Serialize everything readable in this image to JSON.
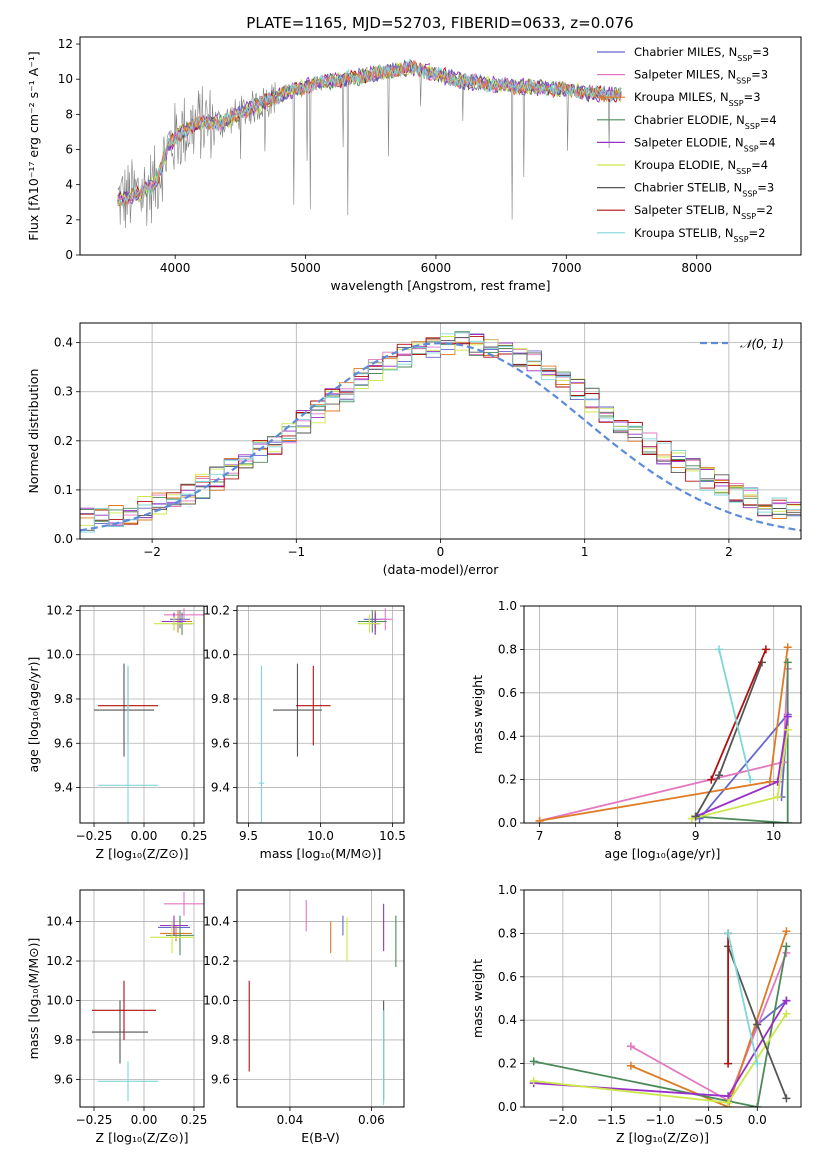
{
  "figure": {
    "title": "PLATE=1165, MJD=52703, FIBERID=0633, z=0.076"
  },
  "models": [
    {
      "name": "Chabrier MILES",
      "n": "3",
      "color": "#6666cc"
    },
    {
      "name": "Salpeter MILES",
      "n": "3",
      "color": "#e377c2"
    },
    {
      "name": "Kroupa MILES",
      "n": "3",
      "color": "#e07b25"
    },
    {
      "name": "Chabrier ELODIE",
      "n": "4",
      "color": "#4c8a5a"
    },
    {
      "name": "Salpeter ELODIE",
      "n": "4",
      "color": "#9b30c8"
    },
    {
      "name": "Kroupa ELODIE",
      "n": "4",
      "color": "#cde84a"
    },
    {
      "name": "Chabrier STELIB",
      "n": "3",
      "color": "#555555"
    },
    {
      "name": "Salpeter STELIB",
      "n": "2",
      "color": "#b01010"
    },
    {
      "name": "Kroupa STELIB",
      "n": "2",
      "color": "#7fd6d8"
    }
  ],
  "chart_data": [
    {
      "id": "spectrum",
      "type": "line",
      "xlabel": "wavelength [Angstrom, rest frame]",
      "ylabel": "Flux [fλ10⁻¹⁷ erg cm⁻² s⁻¹ A⁻¹]",
      "xlim": [
        3270,
        8800
      ],
      "ylim": [
        0,
        12.4
      ],
      "xticks": [
        4000,
        5000,
        6000,
        7000,
        8000
      ],
      "yticks": [
        0,
        2,
        4,
        6,
        8,
        10,
        12
      ],
      "grid": false,
      "legend": "top-right",
      "data_color": "#808080",
      "continuum": {
        "x": [
          3550,
          3650,
          3750,
          3850,
          3950,
          4050,
          4150,
          4250,
          4350,
          4450,
          4600,
          4800,
          5000,
          5200,
          5400,
          5600,
          5800,
          6000,
          6200,
          6400,
          6600,
          6800,
          7000,
          7200,
          7400
        ],
        "y": [
          3.1,
          3.3,
          3.6,
          4.1,
          6.2,
          7.0,
          7.4,
          7.6,
          7.5,
          7.9,
          8.4,
          9.1,
          9.6,
          9.9,
          10.1,
          10.4,
          10.7,
          10.3,
          9.9,
          9.7,
          9.6,
          9.5,
          9.4,
          9.2,
          9.1
        ]
      }
    },
    {
      "id": "residuals",
      "type": "line",
      "xlabel": "(data-model)/error",
      "ylabel": "Normed distribution",
      "xlim": [
        -2.5,
        2.5
      ],
      "ylim": [
        0,
        0.44
      ],
      "xticks": [
        -2,
        -1,
        0,
        1,
        2
      ],
      "yticks": [
        0.0,
        0.1,
        0.2,
        0.3,
        0.4
      ],
      "grid": true,
      "legend": "top-right",
      "reference_label": "𝒩(0, 1)",
      "reference_color": "#5b8bd9"
    },
    {
      "id": "age-Z",
      "type": "scatter",
      "xlabel": "Z [log₁₀(Z/Z⊙)]",
      "ylabel": "age  [log₁₀(age/yr)]",
      "xlim": [
        -0.32,
        0.3
      ],
      "ylim": [
        9.24,
        10.22
      ],
      "xticks": [
        -0.25,
        0.0,
        0.25
      ],
      "yticks": [
        9.4,
        9.6,
        9.8,
        10.0,
        10.2
      ],
      "grid": true,
      "points": [
        {
          "m": 0,
          "x": 0.18,
          "y": 10.16,
          "xe": 0.05,
          "ye": 0.04
        },
        {
          "m": 1,
          "x": 0.2,
          "y": 10.18,
          "xe": 0.1,
          "ye": 0.03
        },
        {
          "m": 2,
          "x": 0.17,
          "y": 10.15,
          "xe": 0.07,
          "ye": 0.05
        },
        {
          "m": 3,
          "x": 0.19,
          "y": 10.14,
          "xe": 0.05,
          "ye": 0.05
        },
        {
          "m": 4,
          "x": 0.15,
          "y": 10.15,
          "xe": 0.06,
          "ye": 0.04
        },
        {
          "m": 5,
          "x": 0.15,
          "y": 10.14,
          "xe": 0.1,
          "ye": 0.03
        },
        {
          "m": 6,
          "x": -0.1,
          "y": 9.75,
          "xe": 0.15,
          "ye": 0.21
        },
        {
          "m": 7,
          "x": -0.08,
          "y": 9.77,
          "xe": 0.15,
          "ye": 0.17
        },
        {
          "m": 8,
          "x": -0.08,
          "y": 9.41,
          "xe": 0.15,
          "ye": 0.54
        }
      ]
    },
    {
      "id": "age-mass",
      "type": "scatter",
      "xlabel": "mass [log₁₀(M/M⊙)]",
      "ylabel": "",
      "xlim": [
        9.42,
        10.58
      ],
      "ylim": [
        9.24,
        10.22
      ],
      "xticks": [
        9.5,
        10.0,
        10.5
      ],
      "yticks": [
        9.4,
        9.6,
        9.8,
        10.0,
        10.2
      ],
      "grid": true,
      "points": [
        {
          "m": 0,
          "x": 10.38,
          "y": 10.16,
          "xe": 0.08,
          "ye": 0.04
        },
        {
          "m": 1,
          "x": 10.45,
          "y": 10.16,
          "xe": 0.05,
          "ye": 0.05
        },
        {
          "m": 2,
          "x": 10.38,
          "y": 10.15,
          "xe": 0.05,
          "ye": 0.05
        },
        {
          "m": 3,
          "x": 10.36,
          "y": 10.15,
          "xe": 0.1,
          "ye": 0.05
        },
        {
          "m": 4,
          "x": 10.38,
          "y": 10.14,
          "xe": 0.03,
          "ye": 0.05
        },
        {
          "m": 5,
          "x": 10.34,
          "y": 10.14,
          "xe": 0.08,
          "ye": 0.04
        },
        {
          "m": 6,
          "x": 9.84,
          "y": 9.75,
          "xe": 0.17,
          "ye": 0.21
        },
        {
          "m": 7,
          "x": 9.95,
          "y": 9.77,
          "xe": 0.12,
          "ye": 0.18
        },
        {
          "m": 8,
          "x": 9.59,
          "y": 9.42,
          "xe": 0.02,
          "ye": 0.53
        }
      ]
    },
    {
      "id": "weight-age",
      "type": "line",
      "xlabel": "age  [log₁₀(age/yr)]",
      "ylabel": "mass weight",
      "xlim": [
        6.8,
        10.35
      ],
      "ylim": [
        0,
        1.0
      ],
      "xticks": [
        7,
        8,
        9,
        10
      ],
      "yticks": [
        0.0,
        0.2,
        0.4,
        0.6,
        0.8,
        1.0
      ],
      "grid": true,
      "series": [
        {
          "m": 0,
          "x": [
            9.05,
            10.18,
            10.1
          ],
          "y": [
            0.02,
            0.5,
            0.12
          ]
        },
        {
          "m": 1,
          "x": [
            7.0,
            10.12,
            10.18
          ],
          "y": [
            0.01,
            0.28,
            0.71
          ]
        },
        {
          "m": 2,
          "x": [
            7.0,
            9.95,
            10.18
          ],
          "y": [
            0.01,
            0.19,
            0.81
          ]
        },
        {
          "m": 3,
          "x": [
            9.0,
            10.18,
            10.18
          ],
          "y": [
            0.03,
            0.0,
            0.74
          ]
        },
        {
          "m": 4,
          "x": [
            9.0,
            10.05,
            10.18
          ],
          "y": [
            0.03,
            0.19,
            0.49
          ]
        },
        {
          "m": 5,
          "x": [
            8.95,
            10.05,
            10.18
          ],
          "y": [
            0.02,
            0.12,
            0.43
          ]
        },
        {
          "m": 6,
          "x": [
            9.0,
            9.3,
            9.85
          ],
          "y": [
            0.03,
            0.22,
            0.74
          ]
        },
        {
          "m": 7,
          "x": [
            9.2,
            9.9
          ],
          "y": [
            0.2,
            0.8
          ]
        },
        {
          "m": 8,
          "x": [
            9.3,
            9.7
          ],
          "y": [
            0.8,
            0.2
          ]
        }
      ]
    },
    {
      "id": "mass-Z",
      "type": "scatter",
      "xlabel": "Z [log₁₀(Z/Z⊙)]",
      "ylabel": "mass [log₁₀(M/M⊙)]",
      "xlim": [
        -0.32,
        0.3
      ],
      "ylim": [
        9.46,
        10.56
      ],
      "xticks": [
        -0.25,
        0.0,
        0.25
      ],
      "yticks": [
        9.6,
        9.8,
        10.0,
        10.2,
        10.4
      ],
      "grid": true,
      "points": [
        {
          "m": 0,
          "x": 0.15,
          "y": 10.37,
          "xe": 0.08,
          "ye": 0.04
        },
        {
          "m": 1,
          "x": 0.2,
          "y": 10.49,
          "xe": 0.1,
          "ye": 0.06
        },
        {
          "m": 2,
          "x": 0.16,
          "y": 10.34,
          "xe": 0.08,
          "ye": 0.04
        },
        {
          "m": 3,
          "x": 0.18,
          "y": 10.33,
          "xe": 0.07,
          "ye": 0.1
        },
        {
          "m": 4,
          "x": 0.15,
          "y": 10.38,
          "xe": 0.07,
          "ye": 0.05
        },
        {
          "m": 5,
          "x": 0.14,
          "y": 10.32,
          "xe": 0.11,
          "ye": 0.08
        },
        {
          "m": 6,
          "x": -0.12,
          "y": 9.84,
          "xe": 0.14,
          "ye": 0.16
        },
        {
          "m": 7,
          "x": -0.1,
          "y": 9.95,
          "xe": 0.16,
          "ye": 0.15
        },
        {
          "m": 8,
          "x": -0.08,
          "y": 9.59,
          "xe": 0.15,
          "ye": 0.1
        }
      ]
    },
    {
      "id": "mass-EBV",
      "type": "scatter",
      "xlabel": "E(B-V)",
      "ylabel": "",
      "xlim": [
        0.027,
        0.068
      ],
      "ylim": [
        9.46,
        10.56
      ],
      "xticks": [
        0.04,
        0.06
      ],
      "yticks": [
        9.6,
        9.8,
        10.0,
        10.2,
        10.4
      ],
      "grid": true,
      "points": [
        {
          "m": 0,
          "x": 0.053,
          "y": 10.38,
          "xe": 0,
          "ye": 0.05
        },
        {
          "m": 1,
          "x": 0.044,
          "y": 10.43,
          "xe": 0,
          "ye": 0.08
        },
        {
          "m": 2,
          "x": 0.05,
          "y": 10.32,
          "xe": 0,
          "ye": 0.08
        },
        {
          "m": 3,
          "x": 0.066,
          "y": 10.3,
          "xe": 0,
          "ye": 0.13
        },
        {
          "m": 4,
          "x": 0.063,
          "y": 10.37,
          "xe": 0,
          "ye": 0.12
        },
        {
          "m": 5,
          "x": 0.054,
          "y": 10.31,
          "xe": 0,
          "ye": 0.11
        },
        {
          "m": 6,
          "x": 0.063,
          "y": 9.75,
          "xe": 0,
          "ye": 0.25
        },
        {
          "m": 7,
          "x": 0.03,
          "y": 9.87,
          "xe": 0,
          "ye": 0.23
        },
        {
          "m": 8,
          "x": 0.063,
          "y": 9.71,
          "xe": 0,
          "ye": 0.24
        }
      ]
    },
    {
      "id": "weight-Z",
      "type": "line",
      "xlabel": "Z [log₁₀(Z/Z⊙)]",
      "ylabel": "mass weight",
      "xlim": [
        -2.4,
        0.45
      ],
      "ylim": [
        0,
        1.0
      ],
      "xticks": [
        -2.0,
        -1.5,
        -1.0,
        -0.5,
        0.0
      ],
      "yticks": [
        0.0,
        0.2,
        0.4,
        0.6,
        0.8,
        1.0
      ],
      "grid": true,
      "series": [
        {
          "m": 0,
          "x": [
            -0.3,
            0.0,
            0.3
          ],
          "y": [
            0.02,
            0.38,
            0.49
          ]
        },
        {
          "m": 1,
          "x": [
            -1.3,
            -0.3,
            0.3
          ],
          "y": [
            0.28,
            0.03,
            0.71
          ]
        },
        {
          "m": 2,
          "x": [
            -1.3,
            -0.3,
            0.3
          ],
          "y": [
            0.19,
            0.0,
            0.81
          ]
        },
        {
          "m": 3,
          "x": [
            -2.3,
            0.0,
            0.3
          ],
          "y": [
            0.21,
            0.0,
            0.74
          ]
        },
        {
          "m": 4,
          "x": [
            -2.3,
            -0.3,
            0.3
          ],
          "y": [
            0.11,
            0.05,
            0.49
          ]
        },
        {
          "m": 5,
          "x": [
            -2.3,
            -0.3,
            0.3
          ],
          "y": [
            0.12,
            0.02,
            0.43
          ]
        },
        {
          "m": 6,
          "x": [
            -0.3,
            0.0,
            0.3
          ],
          "y": [
            0.74,
            0.38,
            0.04
          ]
        },
        {
          "m": 7,
          "x": [
            -0.3,
            -0.3
          ],
          "y": [
            0.2,
            0.8
          ]
        },
        {
          "m": 8,
          "x": [
            -0.3,
            0.0
          ],
          "y": [
            0.8,
            0.2
          ]
        }
      ]
    }
  ]
}
